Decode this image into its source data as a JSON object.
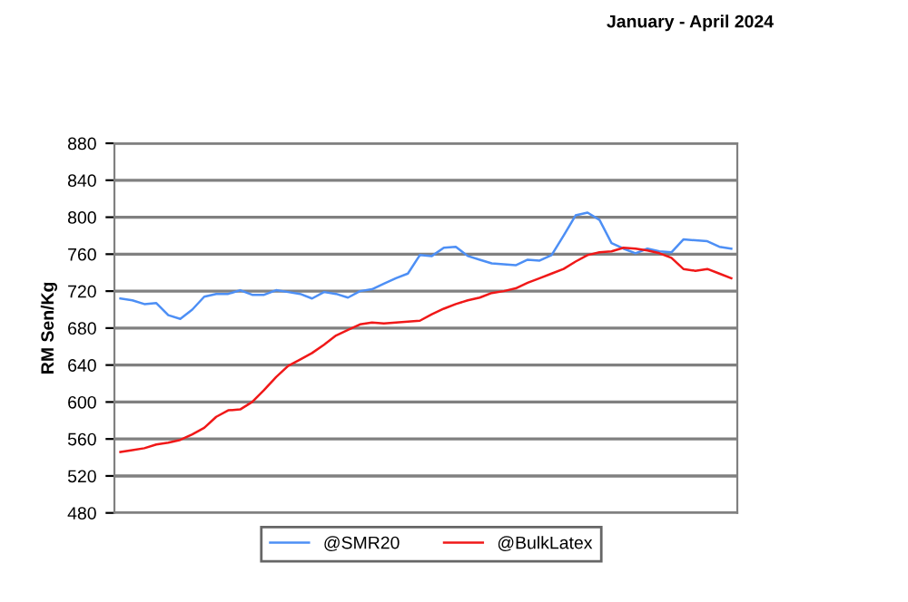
{
  "chart_data": {
    "type": "line",
    "title": "January - April 2024",
    "ylabel": "RM Sen/Kg",
    "categories": [
      null,
      null,
      null,
      null,
      null,
      null,
      null,
      null,
      null,
      null,
      null,
      null,
      null,
      null,
      null,
      null,
      null,
      null,
      null,
      null,
      null,
      null,
      null,
      null,
      null,
      null,
      null,
      null,
      null,
      null,
      null,
      null,
      null,
      null,
      null,
      null,
      null,
      null,
      null,
      null,
      null,
      null,
      null,
      null,
      null,
      null,
      null,
      null,
      null,
      null,
      null,
      null
    ],
    "series": [
      {
        "name": "@SMR20",
        "color": "#4d8ff5",
        "values": [
          712,
          710,
          706,
          707,
          694,
          690,
          700,
          714,
          717,
          717,
          721,
          716,
          716,
          721,
          719,
          717,
          712,
          719,
          717,
          713,
          720,
          722,
          728,
          734,
          739,
          759,
          758,
          767,
          768,
          758,
          754,
          750,
          749,
          748,
          754,
          753,
          759,
          780,
          802,
          805,
          797,
          772,
          766,
          761,
          766,
          763,
          762,
          776,
          775,
          774,
          768,
          766
        ]
      },
      {
        "name": "@BulkLatex",
        "color": "#f01818",
        "values": [
          546,
          548,
          550,
          554,
          556,
          559,
          565,
          572,
          584,
          591,
          592,
          600,
          613,
          627,
          639,
          646,
          653,
          662,
          672,
          678,
          684,
          686,
          685,
          686,
          687,
          688,
          695,
          701,
          706,
          710,
          713,
          718,
          720,
          723,
          729,
          734,
          739,
          744,
          752,
          759,
          762,
          763,
          767,
          766,
          764,
          761,
          756,
          744,
          742,
          744,
          739,
          734
        ]
      }
    ],
    "ylim": [
      480,
      880
    ],
    "yticks": [
      480,
      520,
      560,
      600,
      640,
      680,
      720,
      760,
      800,
      840,
      880
    ],
    "grid": "y",
    "legend": "bottom",
    "tick_labels": "y",
    "marker": "none",
    "line_style": "solid"
  }
}
